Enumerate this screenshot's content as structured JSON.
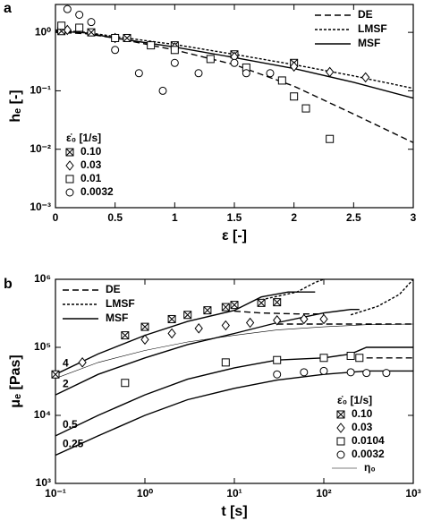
{
  "chart_data": [
    {
      "type": "line",
      "panel_label": "a",
      "x_label": "ε [-]",
      "y_label": "hₑ [-]",
      "xscale": "linear",
      "yscale": "log",
      "xlim": [
        0,
        3
      ],
      "ylim": [
        0.001,
        3
      ],
      "xticks": [
        0,
        0.5,
        1,
        1.5,
        2,
        2.5,
        3
      ],
      "yticks": [
        {
          "value": 0.001,
          "label": "10⁻³"
        },
        {
          "value": 0.01,
          "label": "10⁻²"
        },
        {
          "value": 0.1,
          "label": "10⁻¹"
        },
        {
          "value": 1,
          "label": "10⁰"
        }
      ],
      "models_legend": "upper right",
      "series_legend": "lower left",
      "models": [
        {
          "name": "DE",
          "dash": "7,4",
          "curves": [
            {
              "x": [
                0,
                0.25,
                0.5,
                1,
                1.5,
                2,
                2.5,
                3
              ],
              "values": [
                1.0,
                0.95,
                0.8,
                0.5,
                0.28,
                0.12,
                0.04,
                0.013
              ]
            }
          ]
        },
        {
          "name": "LMSF",
          "dash": "3,2",
          "curves": [
            {
              "x": [
                0,
                0.25,
                0.5,
                1,
                1.5,
                2,
                2.5,
                3
              ],
              "values": [
                1.1,
                1.0,
                0.85,
                0.62,
                0.42,
                0.28,
                0.18,
                0.11
              ]
            }
          ]
        },
        {
          "name": "MSF",
          "dash": "none",
          "curves": [
            {
              "x": [
                0,
                0.25,
                0.5,
                1,
                1.5,
                2,
                2.5,
                3
              ],
              "values": [
                1.05,
                0.98,
                0.8,
                0.56,
                0.37,
                0.24,
                0.14,
                0.075
              ]
            }
          ]
        }
      ],
      "legend_title": "ε̇₀ [1/s]",
      "series": [
        {
          "name": "0.10",
          "marker": "boxx",
          "x": [
            0.05,
            0.3,
            0.6,
            1.0,
            1.5,
            2.0
          ],
          "values": [
            1.05,
            1.0,
            0.8,
            0.6,
            0.42,
            0.3
          ]
        },
        {
          "name": "0.03",
          "marker": "diamond",
          "x": [
            0.1,
            0.5,
            1.0,
            1.5,
            2.0,
            2.3,
            2.6
          ],
          "values": [
            1.1,
            0.8,
            0.55,
            0.38,
            0.26,
            0.21,
            0.17
          ]
        },
        {
          "name": "0.01",
          "marker": "square",
          "x": [
            0.05,
            0.2,
            0.5,
            0.8,
            1.0,
            1.3,
            1.6,
            1.9,
            2.0,
            2.1,
            2.3
          ],
          "values": [
            1.3,
            1.2,
            0.8,
            0.6,
            0.5,
            0.35,
            0.25,
            0.15,
            0.08,
            0.05,
            0.015
          ]
        },
        {
          "name": "0.0032",
          "marker": "circle",
          "x": [
            0.1,
            0.2,
            0.3,
            0.5,
            0.7,
            0.9,
            1.0,
            1.2,
            1.5,
            1.6,
            1.8
          ],
          "values": [
            2.5,
            2.0,
            1.5,
            0.5,
            0.2,
            0.1,
            0.3,
            0.2,
            0.3,
            0.2,
            0.2
          ]
        }
      ]
    },
    {
      "type": "line",
      "panel_label": "b",
      "x_label": "t [s]",
      "y_label": "μₑ [Pas]",
      "xscale": "log",
      "yscale": "log",
      "xlim": [
        0.1,
        1000
      ],
      "ylim": [
        1000,
        1000000
      ],
      "xticks": [
        {
          "value": 0.1,
          "label": "10⁻¹"
        },
        {
          "value": 1,
          "label": "10⁰"
        },
        {
          "value": 10,
          "label": "10¹"
        },
        {
          "value": 100,
          "label": "10²"
        },
        {
          "value": 1000,
          "label": "10³"
        }
      ],
      "yticks": [
        {
          "value": 1000,
          "label": "10³"
        },
        {
          "value": 10000,
          "label": "10⁴"
        },
        {
          "value": 100000,
          "label": "10⁵"
        },
        {
          "value": 1000000,
          "label": "10⁶"
        }
      ],
      "models_legend": "upper left",
      "series_legend": "lower right",
      "models": [
        {
          "name": "DE",
          "dash": "7,4",
          "curves": [
            {
              "x": [
                10,
                20,
                50,
                100
              ],
              "values": [
                340000,
                320000,
                310000,
                310000
              ]
            },
            {
              "x": [
                30,
                100,
                300,
                1000
              ],
              "values": [
                220000,
                220000,
                220000,
                220000
              ]
            },
            {
              "x": [
                300,
                1000
              ],
              "values": [
                70000,
                70000
              ]
            }
          ]
        },
        {
          "name": "LMSF",
          "dash": "3,2",
          "curves": [
            {
              "x": [
                20,
                50,
                80,
                100
              ],
              "values": [
                500000,
                650000,
                900000,
                1000000
              ]
            },
            {
              "x": [
                200,
                400,
                700,
                1000
              ],
              "values": [
                300000,
                400000,
                600000,
                1000000
              ]
            }
          ]
        },
        {
          "name": "MSF",
          "dash": "none",
          "curves": [
            {
              "label": "4",
              "x": [
                0.1,
                0.3,
                1,
                3,
                10,
                20,
                40,
                80
              ],
              "values": [
                40000,
                80000,
                150000,
                240000,
                350000,
                550000,
                650000,
                650000
              ]
            },
            {
              "label": "2",
              "x": [
                0.1,
                0.3,
                1,
                3,
                10,
                30,
                100,
                200,
                250
              ],
              "values": [
                20000,
                40000,
                70000,
                110000,
                160000,
                230000,
                320000,
                360000,
                360000
              ]
            },
            {
              "label": "0.5",
              "x": [
                0.1,
                0.3,
                1,
                3,
                10,
                30,
                100,
                200,
                300,
                1000
              ],
              "values": [
                5000,
                10000,
                20000,
                34000,
                50000,
                65000,
                70000,
                80000,
                100000,
                100000
              ]
            },
            {
              "label": "0.25",
              "x": [
                0.1,
                0.3,
                1,
                3,
                10,
                30,
                100,
                300,
                1000
              ],
              "values": [
                2600,
                5000,
                10000,
                17000,
                25000,
                33000,
                40000,
                45000,
                45000
              ]
            }
          ]
        }
      ],
      "reference": {
        "name": "η₀",
        "x": [
          0.1,
          0.3,
          1,
          3,
          10,
          30,
          100,
          300,
          1000
        ],
        "values": [
          35000,
          60000,
          90000,
          120000,
          150000,
          180000,
          200000,
          215000,
          220000
        ]
      },
      "legend_title": "ε̇₀ [1/s]",
      "series": [
        {
          "name": "0.10",
          "marker": "boxx",
          "x": [
            0.1,
            0.6,
            1,
            2,
            3,
            5,
            8,
            10,
            20,
            30
          ],
          "values": [
            40000,
            150000,
            200000,
            260000,
            300000,
            350000,
            390000,
            420000,
            450000,
            460000
          ]
        },
        {
          "name": "0.03",
          "marker": "diamond",
          "x": [
            0.2,
            1,
            2,
            4,
            8,
            15,
            30,
            60,
            100
          ],
          "values": [
            60000,
            130000,
            160000,
            190000,
            210000,
            230000,
            250000,
            260000,
            260000
          ]
        },
        {
          "name": "0.0104",
          "marker": "square",
          "x": [
            0.6,
            8,
            30,
            100,
            200,
            250
          ],
          "values": [
            30000,
            60000,
            65000,
            70000,
            75000,
            70000
          ]
        },
        {
          "name": "0.0032",
          "marker": "circle",
          "x": [
            30,
            60,
            100,
            200,
            300,
            500
          ],
          "values": [
            40000,
            43000,
            45000,
            43000,
            42000,
            42000
          ]
        }
      ]
    }
  ]
}
